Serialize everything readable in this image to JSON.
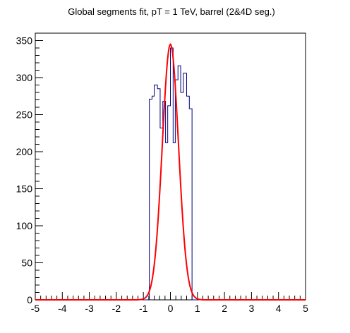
{
  "chart_data": {
    "type": "histogram",
    "title": "Global segments fit, pT = 1 TeV, barrel (2&4D seg.)",
    "xlabel": "",
    "ylabel": "",
    "xlim": [
      -5,
      5
    ],
    "ylim": [
      0,
      360
    ],
    "x_ticks": [
      -5,
      -4,
      -3,
      -2,
      -1,
      0,
      1,
      2,
      3,
      4,
      5
    ],
    "y_ticks": [
      0,
      50,
      100,
      150,
      200,
      250,
      300,
      350
    ],
    "x_tick_labels": [
      "-5",
      "-4",
      "-3",
      "-2",
      "-1",
      "0",
      "1",
      "2",
      "3",
      "4",
      "5"
    ],
    "y_tick_labels": [
      "0",
      "50",
      "100",
      "150",
      "200",
      "250",
      "300",
      "350"
    ],
    "histogram": {
      "name": "residuals",
      "color": "#000080",
      "bin_edges": [
        -0.78,
        -0.68,
        -0.6,
        -0.48,
        -0.38,
        -0.28,
        -0.18,
        -0.1,
        0.0,
        0.1,
        0.18,
        0.28,
        0.38,
        0.48,
        0.6,
        0.7,
        0.8
      ],
      "counts": [
        271,
        275,
        290,
        285,
        232,
        268,
        212,
        262,
        340,
        212,
        297,
        316,
        280,
        306,
        275,
        258
      ]
    },
    "fit": {
      "name": "gaussian fit",
      "color": "#ff0000",
      "amplitude": 345,
      "mean": 0.0,
      "sigma": 0.3,
      "range": [
        -5,
        5
      ]
    }
  }
}
